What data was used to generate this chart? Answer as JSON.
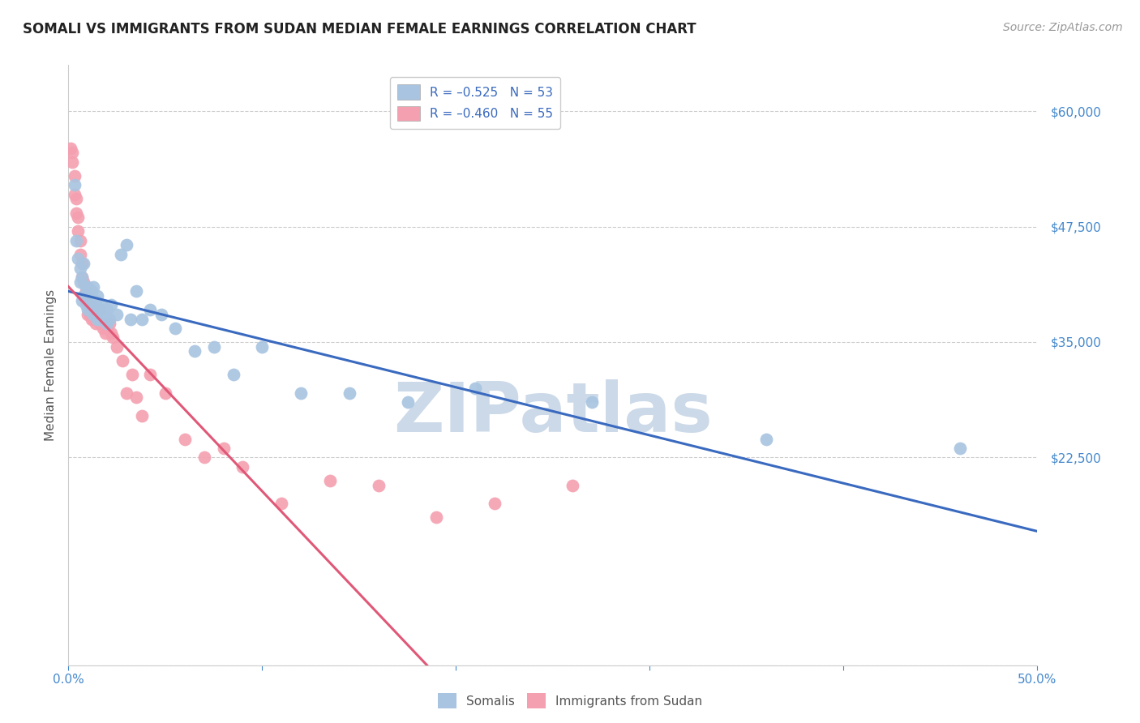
{
  "title": "SOMALI VS IMMIGRANTS FROM SUDAN MEDIAN FEMALE EARNINGS CORRELATION CHART",
  "source": "Source: ZipAtlas.com",
  "ylabel": "Median Female Earnings",
  "xlim": [
    0.0,
    0.5
  ],
  "ylim": [
    0,
    65000
  ],
  "xticks": [
    0.0,
    0.1,
    0.2,
    0.3,
    0.4,
    0.5
  ],
  "xtick_labels": [
    "0.0%",
    "",
    "",
    "",
    "",
    "50.0%"
  ],
  "yticks": [
    0,
    22500,
    35000,
    47500,
    60000
  ],
  "ytick_labels": [
    "",
    "$22,500",
    "$35,000",
    "$47,500",
    "$60,000"
  ],
  "somali_line_color": "#3a6abf",
  "sudan_line_color": "#e05878",
  "somali_scatter_color": "#a8c4e0",
  "sudan_scatter_color": "#f4a0b0",
  "watermark": "ZIPatlas",
  "watermark_color": "#ccd9e8",
  "background_color": "#ffffff",
  "grid_color": "#cccccc",
  "title_color": "#222222",
  "axis_color": "#4488cc",
  "source_color": "#999999",
  "somali_line_x0": 0.0,
  "somali_line_y0": 40500,
  "somali_line_x1": 0.5,
  "somali_line_y1": 14500,
  "sudan_line_x0": 0.0,
  "sudan_line_y0": 41000,
  "sudan_line_x1": 0.185,
  "sudan_line_y1": 0,
  "somali_x": [
    0.003,
    0.004,
    0.005,
    0.006,
    0.006,
    0.007,
    0.007,
    0.008,
    0.008,
    0.009,
    0.009,
    0.01,
    0.01,
    0.011,
    0.011,
    0.012,
    0.012,
    0.013,
    0.013,
    0.013,
    0.014,
    0.014,
    0.015,
    0.015,
    0.016,
    0.016,
    0.017,
    0.018,
    0.019,
    0.02,
    0.02,
    0.021,
    0.022,
    0.025,
    0.027,
    0.03,
    0.032,
    0.035,
    0.038,
    0.042,
    0.048,
    0.055,
    0.065,
    0.075,
    0.085,
    0.1,
    0.12,
    0.145,
    0.175,
    0.21,
    0.27,
    0.36,
    0.46
  ],
  "somali_y": [
    52000,
    46000,
    44000,
    41500,
    43000,
    39500,
    42000,
    40000,
    43500,
    41000,
    39000,
    41000,
    38500,
    39500,
    40000,
    38500,
    40500,
    38000,
    39000,
    41000,
    38000,
    39500,
    37500,
    40000,
    38000,
    37500,
    39000,
    38500,
    38000,
    38500,
    37000,
    37500,
    39000,
    38000,
    44500,
    45500,
    37500,
    40500,
    37500,
    38500,
    38000,
    36500,
    34000,
    34500,
    31500,
    34500,
    29500,
    29500,
    28500,
    30000,
    28500,
    24500,
    23500
  ],
  "sudan_x": [
    0.001,
    0.002,
    0.002,
    0.003,
    0.003,
    0.004,
    0.004,
    0.005,
    0.005,
    0.006,
    0.006,
    0.007,
    0.007,
    0.008,
    0.008,
    0.009,
    0.009,
    0.01,
    0.01,
    0.011,
    0.011,
    0.012,
    0.012,
    0.013,
    0.013,
    0.014,
    0.014,
    0.015,
    0.016,
    0.016,
    0.017,
    0.018,
    0.019,
    0.02,
    0.021,
    0.022,
    0.023,
    0.025,
    0.028,
    0.03,
    0.033,
    0.035,
    0.038,
    0.042,
    0.05,
    0.06,
    0.07,
    0.08,
    0.09,
    0.11,
    0.135,
    0.16,
    0.19,
    0.22,
    0.26
  ],
  "sudan_y": [
    56000,
    55500,
    54500,
    53000,
    51000,
    50500,
    49000,
    48500,
    47000,
    46000,
    44500,
    43500,
    42000,
    41500,
    40000,
    40500,
    39500,
    40000,
    38000,
    39500,
    38000,
    38500,
    37500,
    38000,
    37500,
    37000,
    38000,
    38500,
    37000,
    38500,
    37000,
    36500,
    36000,
    36500,
    37000,
    36000,
    35500,
    34500,
    33000,
    29500,
    31500,
    29000,
    27000,
    31500,
    29500,
    24500,
    22500,
    23500,
    21500,
    17500,
    20000,
    19500,
    16000,
    17500,
    19500
  ]
}
